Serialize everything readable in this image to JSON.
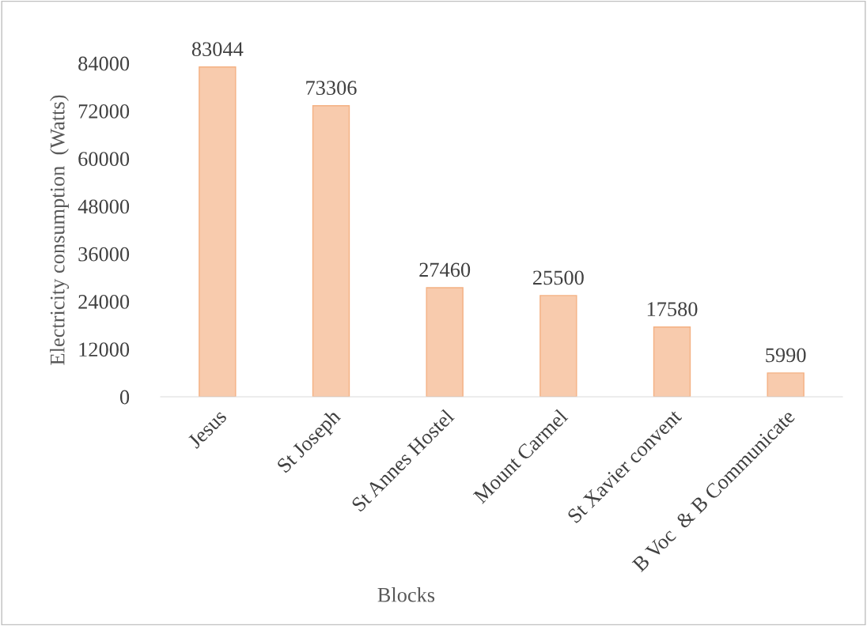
{
  "chart_data": {
    "type": "bar",
    "xlabel": "Blocks",
    "ylabel": "Electricity consumption  (Watts)",
    "categories": [
      "Jesus",
      "St Joseph",
      "St Annes Hostel",
      "Mount Carmel",
      "St Xavier convent",
      "B Voc  & B Communicate"
    ],
    "values": [
      83044,
      73306,
      27460,
      25500,
      17580,
      5990
    ],
    "color": "#f8cbad",
    "ylim": [
      0,
      84000
    ],
    "yticks": [
      0,
      12000,
      24000,
      36000,
      48000,
      60000,
      72000,
      84000
    ],
    "data_labels": true,
    "grid": false,
    "legend": false
  }
}
